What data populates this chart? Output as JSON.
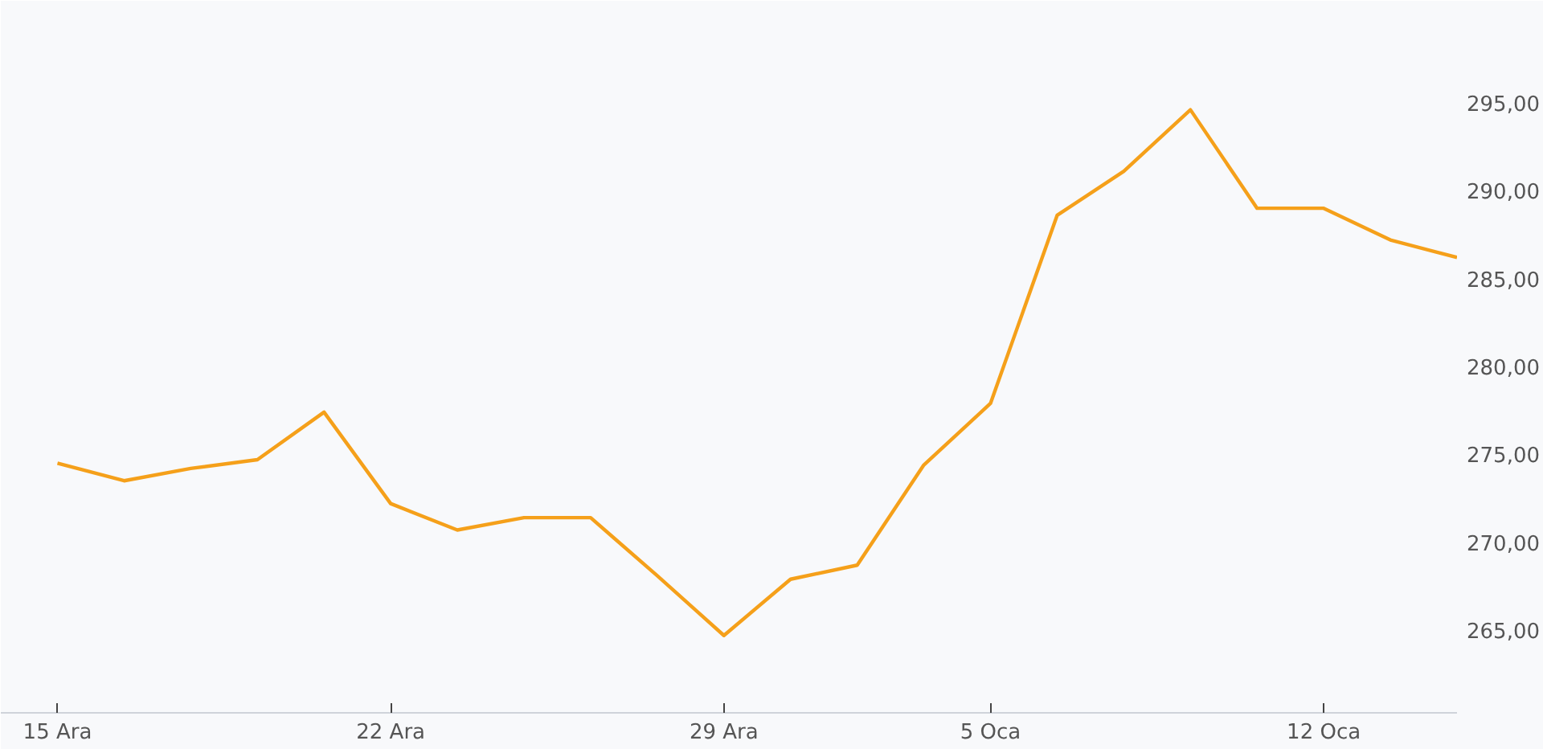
{
  "chart_data": {
    "type": "line",
    "categories": [
      "15 Ara",
      null,
      null,
      null,
      null,
      "22 Ara",
      null,
      null,
      null,
      null,
      "29 Ara",
      null,
      null,
      null,
      "5 Oca",
      null,
      null,
      null,
      null,
      "12 Oca",
      null,
      null
    ],
    "series": [
      {
        "color": "#f5a01a",
        "values": [
          274.5,
          273.5,
          274.2,
          274.7,
          277.4,
          272.2,
          270.7,
          271.4,
          271.4,
          268.1,
          264.7,
          267.9,
          268.7,
          274.4,
          277.9,
          288.6,
          291.1,
          294.6,
          289.0,
          289.0,
          287.2,
          286.2
        ]
      }
    ],
    "ylim": [
      260.3,
      300.8
    ],
    "yticks": [
      {
        "value": 265,
        "label": "265,00"
      },
      {
        "value": 270,
        "label": "270,00"
      },
      {
        "value": 275,
        "label": "275,00"
      },
      {
        "value": 280,
        "label": "280,00"
      },
      {
        "value": 285,
        "label": "285,00"
      },
      {
        "value": 290,
        "label": "290,00"
      },
      {
        "value": 295,
        "label": "295,00"
      }
    ],
    "grid": false,
    "marker": "none",
    "line_style": "solid"
  }
}
